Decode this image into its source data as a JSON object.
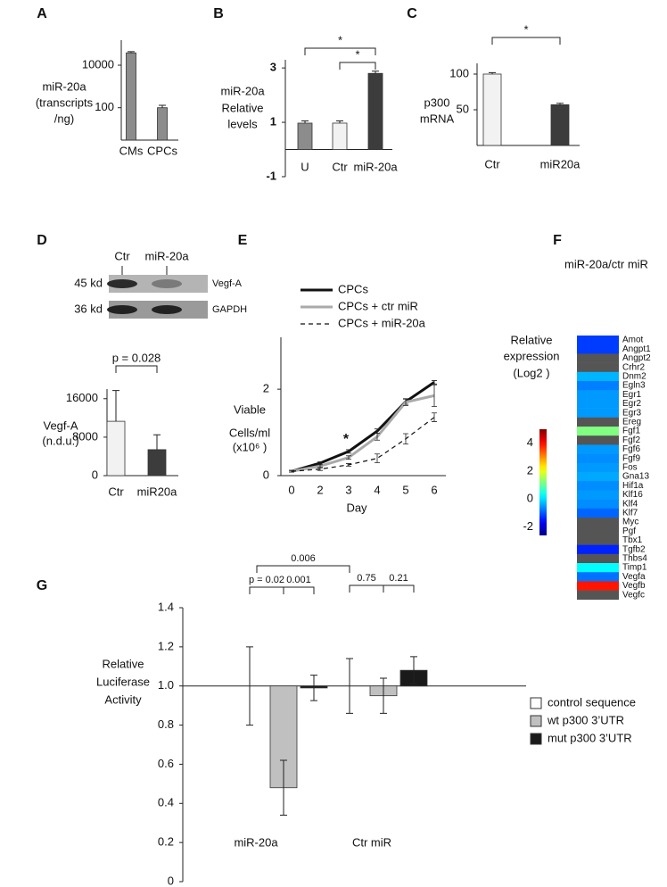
{
  "chart_data": [
    {
      "panel": "A",
      "type": "bar",
      "y_label": [
        "miR-20a",
        "(transcripts",
        "/ng)"
      ],
      "categories": [
        "CMs",
        "CPCs"
      ],
      "values": [
        38000,
        100
      ],
      "errors": [
        5000,
        30
      ],
      "color": "#8c8c8c",
      "log_scale": true,
      "ylim": [
        3,
        150000
      ],
      "yticks": [
        100,
        10000
      ]
    },
    {
      "panel": "B",
      "type": "bar",
      "y_label": [
        "miR-20a",
        "Relative",
        "levels"
      ],
      "categories": [
        "U",
        "Ctr",
        "miR-20a"
      ],
      "values": [
        0.97,
        0.97,
        2.8
      ],
      "errors": [
        0.08,
        0.08,
        0.08
      ],
      "colors": [
        "#8c8c8c",
        "#f2f2f2",
        "#3c3c3c"
      ],
      "ylim": [
        -1,
        3.3
      ],
      "yticks": [
        -1,
        1,
        3
      ],
      "significance": [
        "*",
        "*"
      ]
    },
    {
      "panel": "C",
      "type": "bar",
      "y_label": [
        "p300",
        "mRNA"
      ],
      "categories": [
        "Ctr",
        "miR20a"
      ],
      "values": [
        100,
        57
      ],
      "errors": [
        2,
        2
      ],
      "colors": [
        "#f2f2f2",
        "#3c3c3c"
      ],
      "ylim": [
        0,
        115
      ],
      "yticks": [
        50,
        100
      ],
      "significance": [
        "*"
      ]
    },
    {
      "panel": "D",
      "type": "bar",
      "blot": {
        "lanes": [
          "Ctr",
          "miR-20a"
        ],
        "sizes": [
          "45 kd",
          "36 kd"
        ],
        "proteins": [
          "Vegf-A",
          "GAPDH"
        ]
      },
      "y_label": [
        "Vegf-A",
        "(n.d.u.)"
      ],
      "categories": [
        "Ctr",
        "miR20a"
      ],
      "values": [
        11300,
        5400
      ],
      "errors": [
        6400,
        3100
      ],
      "colors": [
        "#f2f2f2",
        "#3c3c3c"
      ],
      "ylim": [
        0,
        18000
      ],
      "yticks": [
        0,
        8000,
        16000
      ],
      "significance": [
        "p = 0.028"
      ]
    },
    {
      "panel": "E",
      "type": "line",
      "y_label": [
        "Viable",
        "Cells/ml",
        "(x10⁶ )"
      ],
      "x_label": "Day",
      "categories": [
        "0",
        "2",
        "3",
        "4",
        "5",
        "6"
      ],
      "series": [
        {
          "name": "CPCs",
          "color": "#111111",
          "line_style": "solid",
          "width": 3,
          "values": [
            0.1,
            0.29,
            0.56,
            1.03,
            1.71,
            2.16
          ],
          "errors": [
            0.02,
            0.03,
            0.04,
            0.05,
            0.06,
            0.04
          ]
        },
        {
          "name": "CPCs + ctr miR",
          "color": "#aaaaaa",
          "line_style": "solid",
          "width": 3,
          "values": [
            0.1,
            0.22,
            0.42,
            0.9,
            1.7,
            1.85
          ],
          "errors": [
            0.02,
            0.03,
            0.04,
            0.08,
            0.08,
            0.25
          ]
        },
        {
          "name": "CPCs + miR-20a",
          "color": "#111111",
          "line_style": "dashed",
          "width": 1.2,
          "values": [
            0.1,
            0.15,
            0.25,
            0.4,
            0.85,
            1.35
          ],
          "errors": [
            0.02,
            0.03,
            0.03,
            0.1,
            0.12,
            0.1
          ]
        }
      ],
      "ylim": [
        0,
        3.2
      ],
      "yticks": [
        0,
        2
      ],
      "annotations": [
        "*"
      ]
    },
    {
      "panel": "F",
      "type": "heatmap",
      "title": "miR-20a/ctr miR",
      "colorbar_label": [
        "Relative",
        "expression",
        "(Log2 )"
      ],
      "colormap": "jet",
      "clim": [
        -2.6,
        5
      ],
      "cticks": [
        -2,
        0,
        2,
        4
      ],
      "missing_color": "#555555",
      "rows": [
        "Amot",
        "Angpt1",
        "Angpt2",
        "Crhr2",
        "Dnm2",
        "Egln3",
        "Egr1",
        "Egr2",
        "Egr3",
        "Ereg",
        "Fgf1",
        "Fgf2",
        "Fgf6",
        "Fgf9",
        "Fos",
        "Gna13",
        "Hif1a",
        "Klf16",
        "Klf4",
        "Klf7",
        "Myc",
        "Pgf",
        "Tbx1",
        "Tgfb2",
        "Thbs4",
        "Timp1",
        "Vegfa",
        "Vegfb",
        "Vegfc"
      ],
      "values": [
        -1.2,
        -1.2,
        null,
        null,
        -0.3,
        -0.7,
        -0.5,
        -0.5,
        -0.5,
        null,
        1.2,
        null,
        -0.5,
        -0.6,
        -0.5,
        -0.4,
        -0.6,
        -0.5,
        -0.6,
        -0.9,
        null,
        null,
        null,
        -1.4,
        null,
        0.25,
        -0.8,
        3.9,
        null
      ]
    },
    {
      "panel": "G",
      "type": "grouped_bar",
      "y_label": [
        "Relative",
        "Luciferase",
        "Activity"
      ],
      "categories": [
        "miR-20a",
        "Ctr miR"
      ],
      "baseline": 1,
      "series": [
        {
          "name": "control sequence",
          "color": "#ffffff",
          "values": [
            1,
            1
          ],
          "errors": [
            0.2,
            0.14
          ]
        },
        {
          "name": "wt p300 3’UTR",
          "color": "#c0c0c0",
          "values": [
            0.48,
            0.95
          ],
          "errors": [
            0.14,
            0.09
          ]
        },
        {
          "name": "mut p300 3’UTR",
          "color": "#1a1a1a",
          "values": [
            0.99,
            1.08
          ],
          "errors": [
            0.065,
            0.07
          ]
        }
      ],
      "ylim": [
        0,
        1.4
      ],
      "yticks": [
        0,
        0.2,
        0.4,
        0.6,
        0.8,
        {
          "value": 1,
          "label": "1.0"
        },
        1.2,
        1.4
      ],
      "significance": [
        "p = 0.02",
        "0.001",
        "0.006",
        "0.75",
        "0.21"
      ]
    }
  ]
}
